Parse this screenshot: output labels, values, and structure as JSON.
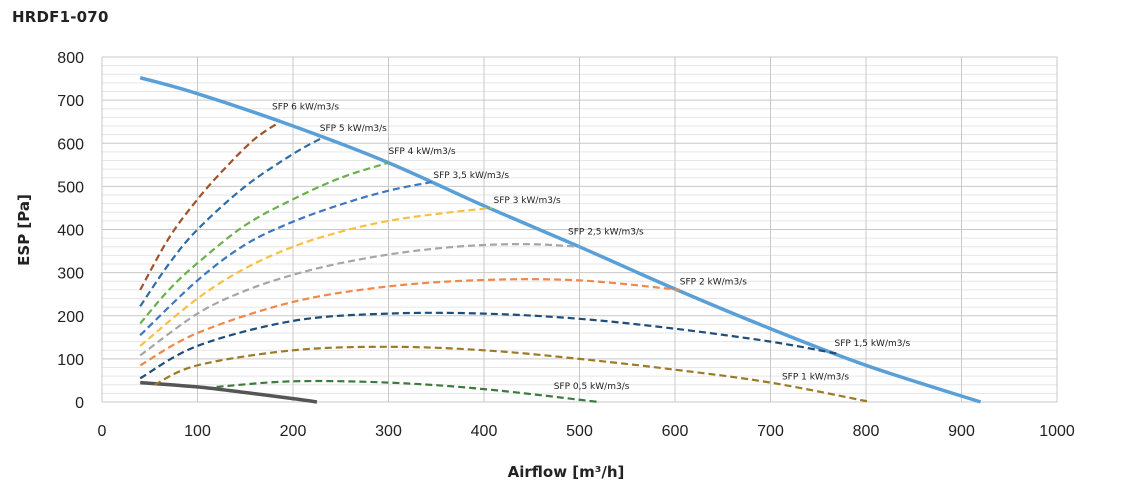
{
  "chart_data": {
    "type": "line",
    "title": "HRDF1-070",
    "xlabel": "Airflow [m³/h]",
    "ylabel": "ESP  [Pa]",
    "xlim": [
      0,
      1000
    ],
    "ylim": [
      0,
      800
    ],
    "x_ticks": [
      0,
      100,
      200,
      300,
      400,
      500,
      600,
      700,
      800,
      900,
      1000
    ],
    "y_ticks": [
      0,
      100,
      200,
      300,
      400,
      500,
      600,
      700,
      800
    ],
    "grid": true,
    "series": [
      {
        "color": "#5a9fd6",
        "style": "solid",
        "x": [
          40,
          100,
          200,
          300,
          400,
          500,
          600,
          700,
          800,
          920
        ],
        "y": [
          752,
          715,
          640,
          555,
          455,
          360,
          262,
          170,
          85,
          0
        ]
      },
      {
        "color": "#555555",
        "style": "solid",
        "x": [
          40,
          100,
          150,
          200,
          225
        ],
        "y": [
          45,
          35,
          22,
          8,
          0
        ]
      },
      {
        "name": "SFP 6 kW/m3/s",
        "color": "#a0522d",
        "style": "dashed",
        "x": [
          40,
          70,
          100,
          130,
          160,
          185
        ],
        "y": [
          260,
          380,
          470,
          545,
          610,
          648
        ]
      },
      {
        "name": "SFP 5 kW/m3/s",
        "color": "#2e6da4",
        "style": "dashed",
        "x": [
          40,
          70,
          100,
          150,
          200,
          230
        ],
        "y": [
          222,
          320,
          400,
          500,
          575,
          612
        ]
      },
      {
        "name": "SFP 4 kW/m3/s",
        "color": "#6ab04c",
        "style": "dashed",
        "x": [
          40,
          70,
          100,
          150,
          200,
          250,
          300
        ],
        "y": [
          182,
          260,
          322,
          410,
          470,
          520,
          555
        ]
      },
      {
        "name": "SFP 3,5 kW/m3/s",
        "color": "#3a78c2",
        "style": "dashed",
        "x": [
          40,
          100,
          150,
          200,
          250,
          300,
          345
        ],
        "y": [
          155,
          282,
          365,
          418,
          458,
          490,
          510
        ]
      },
      {
        "name": "SFP 3 kW/m3/s",
        "color": "#f5c242",
        "style": "dashed",
        "x": [
          40,
          100,
          150,
          200,
          250,
          300,
          350,
          408
        ],
        "y": [
          130,
          240,
          310,
          360,
          395,
          420,
          436,
          450
        ]
      },
      {
        "name": "SFP 2,5 kW/m3/s",
        "color": "#a6a6a6",
        "style": "dashed",
        "x": [
          40,
          100,
          150,
          200,
          250,
          300,
          350,
          400,
          450,
          500
        ],
        "y": [
          108,
          205,
          258,
          295,
          322,
          342,
          356,
          364,
          366,
          360
        ]
      },
      {
        "name": "SFP 2 kW/m3/s",
        "color": "#f0884a",
        "style": "dashed",
        "x": [
          40,
          100,
          200,
          300,
          400,
          500,
          605
        ],
        "y": [
          85,
          160,
          232,
          268,
          283,
          282,
          260
        ]
      },
      {
        "name": "SFP 1,5 kW/m3/s",
        "color": "#1f4e79",
        "style": "dashed",
        "x": [
          40,
          100,
          200,
          300,
          400,
          500,
          600,
          700,
          770
        ],
        "y": [
          55,
          130,
          188,
          205,
          205,
          193,
          170,
          140,
          112
        ]
      },
      {
        "name": "SFP 1 kW/m3/s",
        "color": "#9c7a28",
        "style": "dashed",
        "x": [
          55,
          100,
          200,
          300,
          400,
          500,
          600,
          700,
          805
        ],
        "y": [
          40,
          85,
          120,
          128,
          120,
          100,
          75,
          45,
          0
        ]
      },
      {
        "name": "SFP 0,5 kW/m3/s",
        "color": "#3d7a3d",
        "style": "dashed",
        "x": [
          120,
          200,
          300,
          400,
          520
        ],
        "y": [
          35,
          48,
          45,
          30,
          0
        ]
      }
    ],
    "labels": [
      {
        "text": "SFP 6 kW/m3/s",
        "x": 178,
        "y": 678
      },
      {
        "text": "SFP 5 kW/m3/s",
        "x": 228,
        "y": 628
      },
      {
        "text": "SFP 4 kW/m3/s",
        "x": 300,
        "y": 575
      },
      {
        "text": "SFP 3,5 kW/m3/s",
        "x": 347,
        "y": 520
      },
      {
        "text": "SFP 3 kW/m3/s",
        "x": 410,
        "y": 462
      },
      {
        "text": "SFP 2,5 kW/m3/s",
        "x": 488,
        "y": 388
      },
      {
        "text": "SFP 2 kW/m3/s",
        "x": 605,
        "y": 273
      },
      {
        "text": "SFP 1,5 kW/m3/s",
        "x": 767,
        "y": 130
      },
      {
        "text": "SFP 1 kW/m3/s",
        "x": 712,
        "y": 52
      },
      {
        "text": "SFP 0,5 kW/m3/s",
        "x": 473,
        "y": 30
      }
    ]
  }
}
